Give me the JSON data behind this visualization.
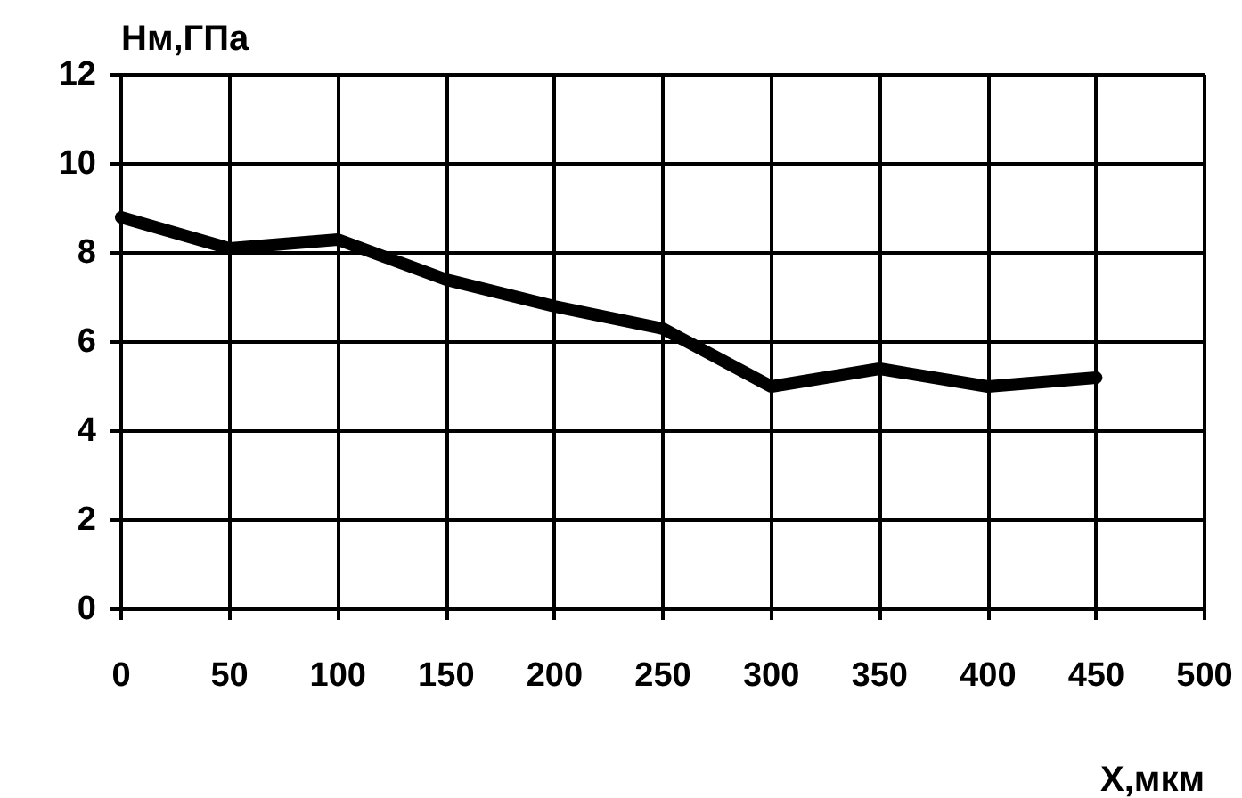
{
  "chart_data": {
    "type": "line",
    "xlabel": "X,мкм",
    "ylabel": "Нм,ГПа",
    "x": [
      0,
      50,
      100,
      150,
      200,
      250,
      300,
      350,
      400,
      450
    ],
    "series": [
      {
        "color": "#000000",
        "values": [
          8.8,
          8.1,
          8.3,
          7.4,
          6.8,
          6.3,
          5.0,
          5.4,
          5.0,
          5.2
        ]
      }
    ],
    "xlim": [
      0,
      500
    ],
    "xticks": [
      0,
      50,
      100,
      150,
      200,
      250,
      300,
      350,
      400,
      450,
      500
    ],
    "ylim": [
      0,
      12
    ],
    "yticks": [
      0,
      2,
      4,
      6,
      8,
      10,
      12
    ],
    "grid": true,
    "line_style": "solid"
  }
}
